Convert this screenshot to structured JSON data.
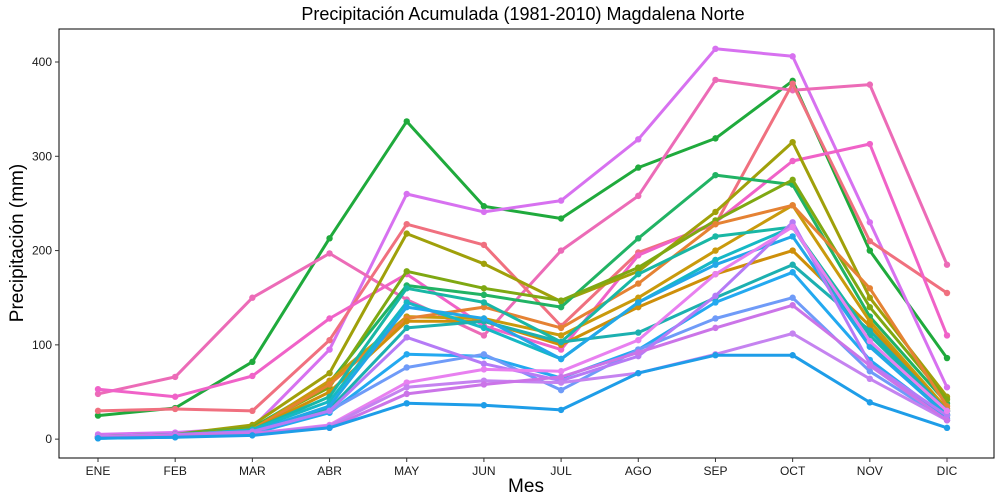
{
  "chart_data": {
    "type": "line",
    "title": "Precipitación Acumulada (1981-2010)  Magdalena Norte",
    "xlabel": "Mes",
    "ylabel": "Precipitación  (mm)",
    "categories": [
      "ENE",
      "FEB",
      "MAR",
      "ABR",
      "MAY",
      "JUN",
      "JUL",
      "AGO",
      "SEP",
      "OCT",
      "NOV",
      "DIC"
    ],
    "ylim": [
      -20,
      435
    ],
    "yticks": [
      0,
      100,
      200,
      300,
      400
    ],
    "grid": false,
    "legend": "none",
    "series": [
      {
        "color": "#1FAA3C",
        "values": [
          25,
          33,
          82,
          213,
          337,
          247,
          234,
          288,
          319,
          380,
          200,
          86
        ]
      },
      {
        "color": "#D771F0",
        "values": [
          5,
          7,
          12,
          95,
          260,
          241,
          253,
          318,
          414,
          406,
          230,
          55
        ]
      },
      {
        "color": "#EC6BB7",
        "values": [
          48,
          66,
          150,
          197,
          148,
          110,
          200,
          258,
          381,
          370,
          376,
          185
        ]
      },
      {
        "color": "#F0707F",
        "values": [
          30,
          32,
          30,
          105,
          228,
          206,
          120,
          198,
          228,
          377,
          210,
          155
        ]
      },
      {
        "color": "#F062C8",
        "values": [
          53,
          45,
          67,
          128,
          175,
          120,
          95,
          195,
          230,
          295,
          313,
          110
        ]
      },
      {
        "color": "#A0A00A",
        "values": [
          3,
          5,
          15,
          70,
          218,
          186,
          146,
          178,
          241,
          315,
          150,
          45
        ]
      },
      {
        "color": "#21B364",
        "values": [
          3,
          5,
          12,
          60,
          163,
          153,
          140,
          213,
          280,
          270,
          130,
          38
        ]
      },
      {
        "color": "#7FA812",
        "values": [
          2,
          4,
          12,
          55,
          178,
          160,
          147,
          182,
          232,
          275,
          140,
          42
        ]
      },
      {
        "color": "#C99A0C",
        "values": [
          2,
          4,
          10,
          62,
          130,
          128,
          110,
          150,
          200,
          248,
          125,
          32
        ]
      },
      {
        "color": "#E58233",
        "values": [
          2,
          4,
          10,
          58,
          128,
          140,
          118,
          165,
          228,
          248,
          160,
          35
        ]
      },
      {
        "color": "#CE8F0A",
        "values": [
          2,
          4,
          10,
          50,
          125,
          125,
          100,
          140,
          175,
          200,
          120,
          30
        ]
      },
      {
        "color": "#19B7A5",
        "values": [
          2,
          4,
          10,
          45,
          160,
          145,
          103,
          175,
          215,
          225,
          110,
          30
        ]
      },
      {
        "color": "#16B8C5",
        "values": [
          2,
          4,
          10,
          40,
          145,
          118,
          85,
          145,
          190,
          225,
          100,
          26
        ]
      },
      {
        "color": "#1CB0B0",
        "values": [
          1,
          3,
          8,
          32,
          118,
          125,
          103,
          113,
          150,
          185,
          115,
          30
        ]
      },
      {
        "color": "#22A7E8",
        "values": [
          1,
          3,
          8,
          35,
          140,
          128,
          85,
          145,
          185,
          215,
          98,
          25
        ]
      },
      {
        "color": "#23A9F0",
        "values": [
          1,
          2,
          6,
          28,
          90,
          88,
          65,
          95,
          145,
          177,
          84,
          22
        ]
      },
      {
        "color": "#6F9BF8",
        "values": [
          2,
          4,
          8,
          30,
          76,
          90,
          52,
          95,
          128,
          150,
          72,
          20
        ]
      },
      {
        "color": "#B57BF6",
        "values": [
          3,
          5,
          8,
          30,
          108,
          80,
          62,
          88,
          152,
          230,
          80,
          25
        ]
      },
      {
        "color": "#E880F0",
        "values": [
          2,
          4,
          6,
          15,
          60,
          74,
          72,
          105,
          175,
          225,
          104,
          30
        ]
      },
      {
        "color": "#C583F0",
        "values": [
          3,
          4,
          6,
          14,
          55,
          62,
          60,
          70,
          90,
          112,
          64,
          20
        ]
      },
      {
        "color": "#CB74E8",
        "values": [
          2,
          4,
          6,
          12,
          48,
          58,
          66,
          92,
          118,
          142,
          78,
          20
        ]
      },
      {
        "color": "#1E9DE8",
        "values": [
          1,
          2,
          4,
          12,
          38,
          36,
          31,
          70,
          89,
          89,
          39,
          12
        ]
      }
    ]
  }
}
